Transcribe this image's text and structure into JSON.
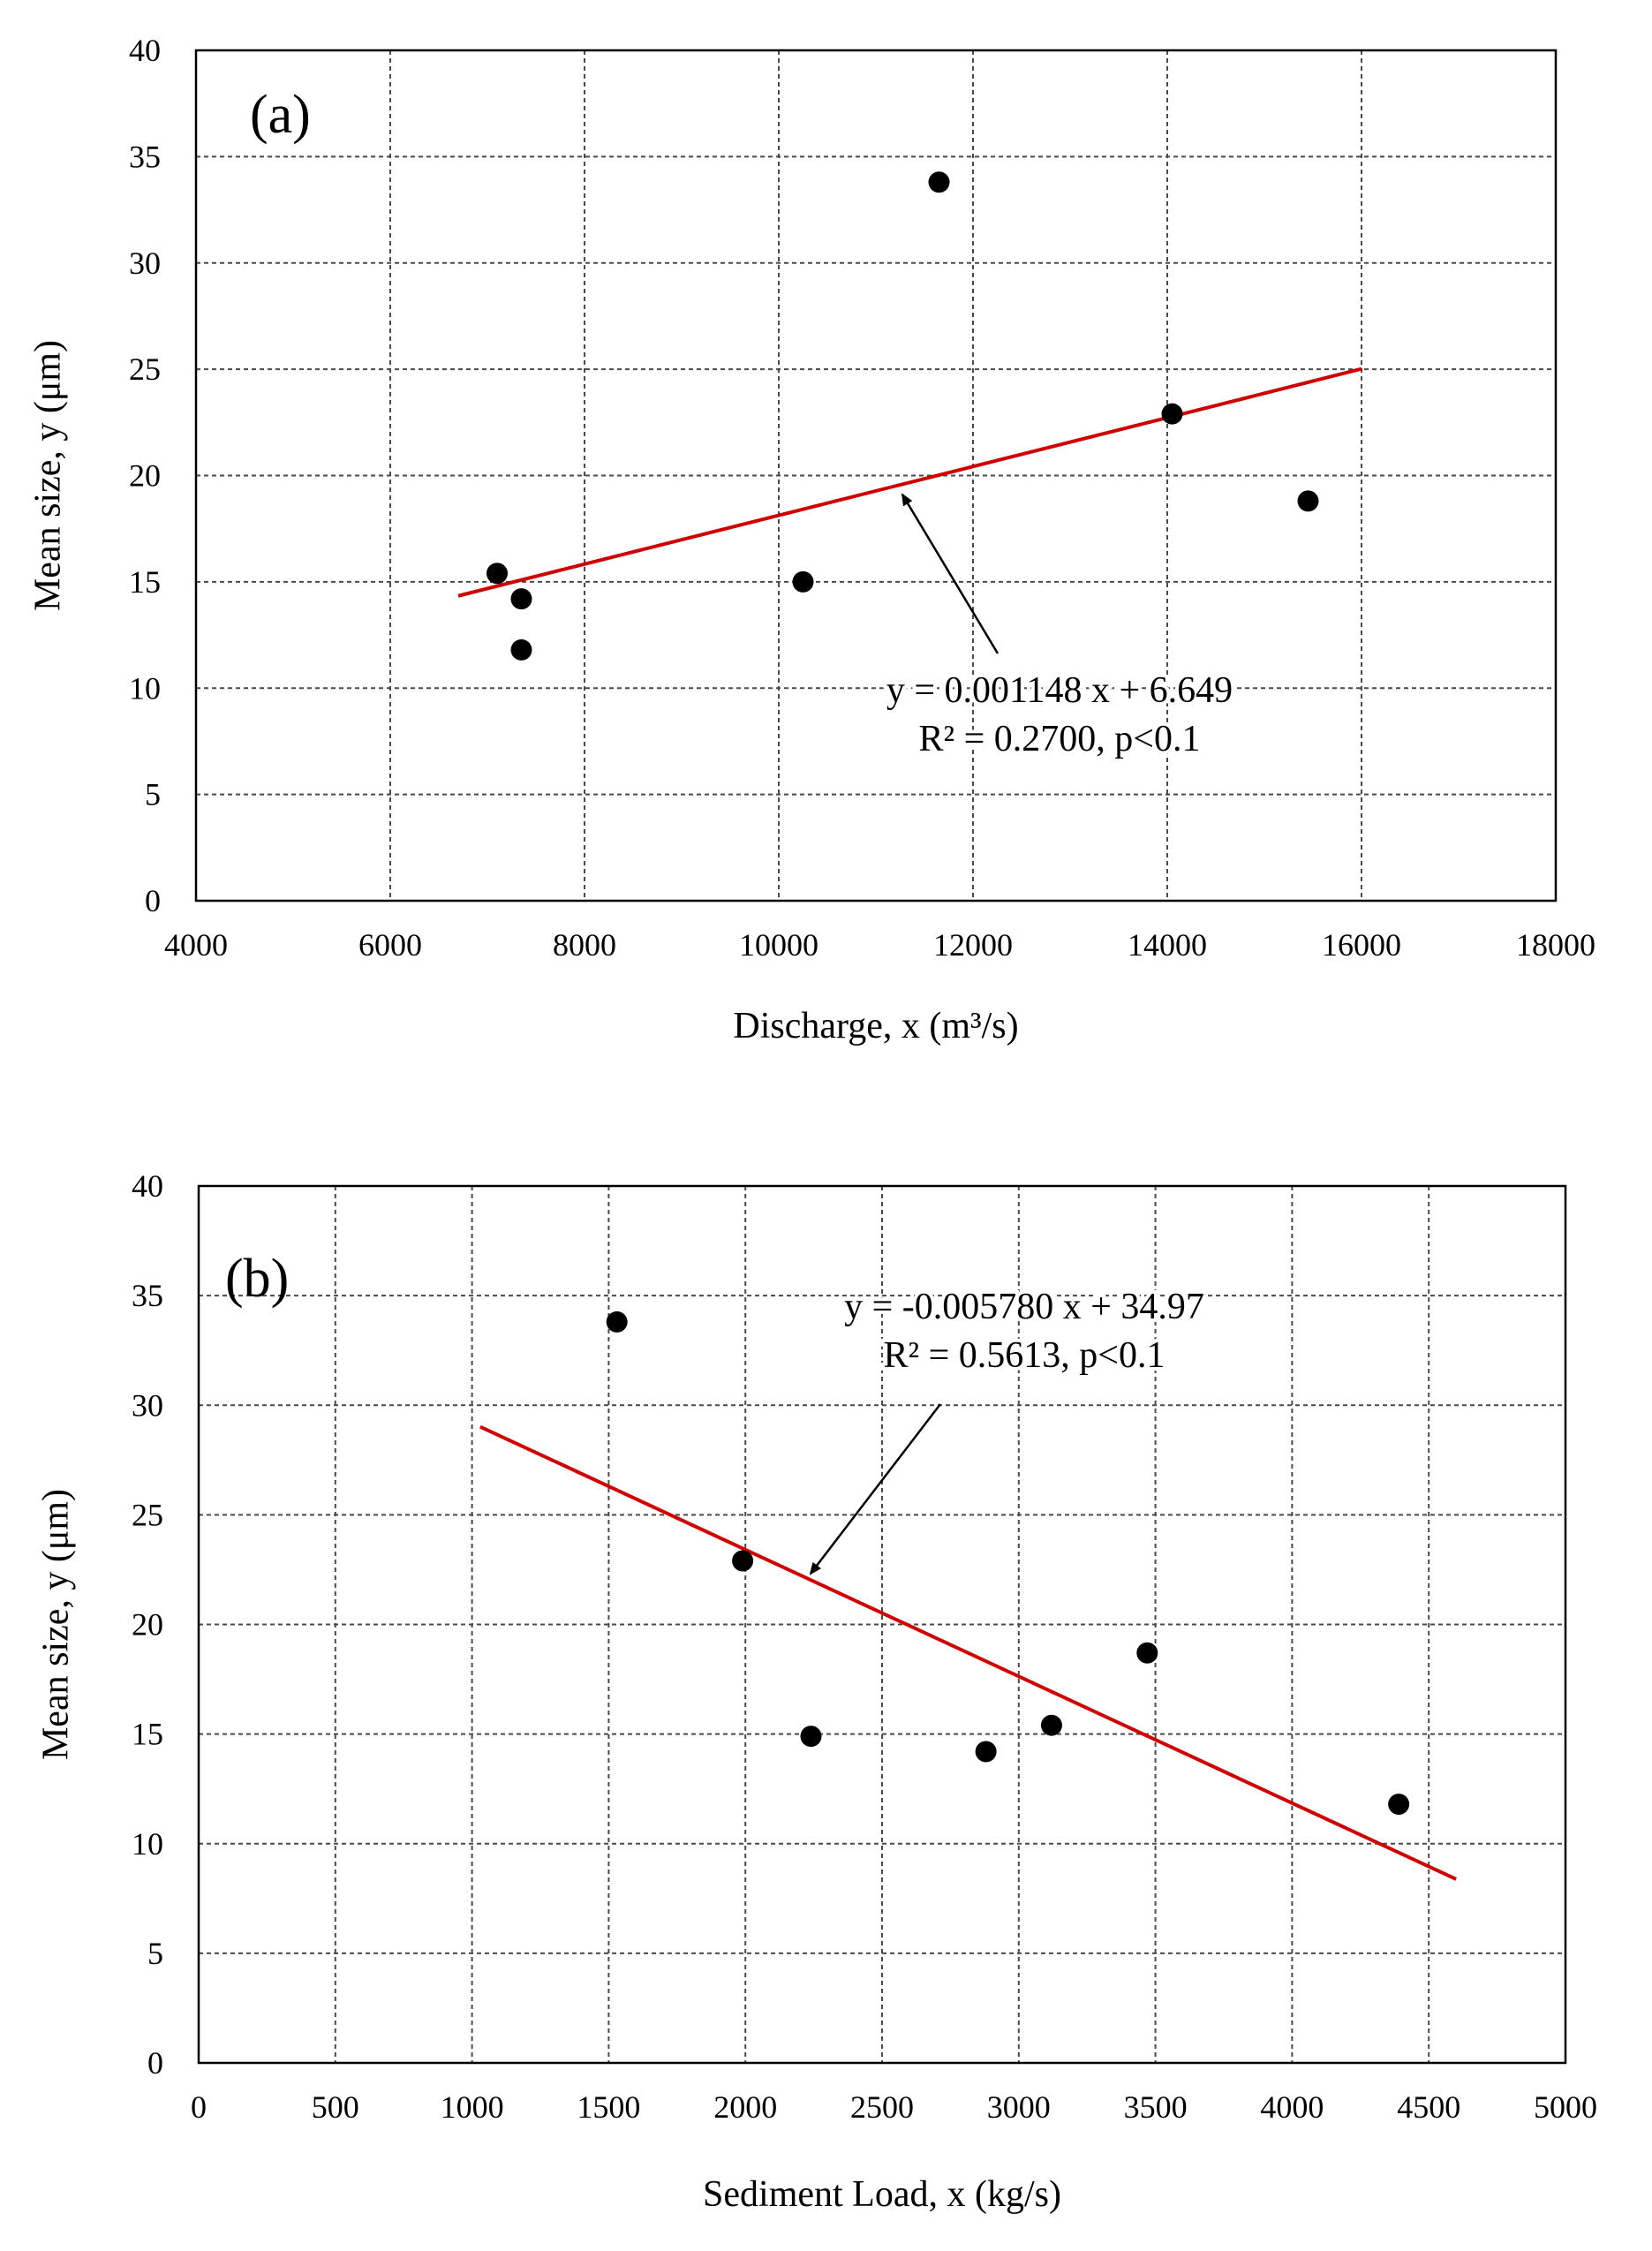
{
  "chart_data": [
    {
      "type": "scatter",
      "panel_label": "(a)",
      "xlabel": "Discharge, x (m³/s)",
      "ylabel": "Mean size, y (μm)",
      "xlim": [
        4000,
        18000
      ],
      "ylim": [
        0,
        40
      ],
      "xticks": [
        4000,
        6000,
        8000,
        10000,
        12000,
        14000,
        16000,
        18000
      ],
      "yticks": [
        0,
        5,
        10,
        15,
        20,
        25,
        30,
        35,
        40
      ],
      "grid": true,
      "series": [
        {
          "name": "observations",
          "points": [
            {
              "x": 7100,
              "y": 15.4
            },
            {
              "x": 7350,
              "y": 14.2
            },
            {
              "x": 7350,
              "y": 11.8
            },
            {
              "x": 10250,
              "y": 15.0
            },
            {
              "x": 11650,
              "y": 33.8
            },
            {
              "x": 14050,
              "y": 22.9
            },
            {
              "x": 15450,
              "y": 18.8
            }
          ]
        }
      ],
      "fit": {
        "slope": 0.001148,
        "intercept": 6.649,
        "x_range": [
          6700,
          16000
        ],
        "equation": "y = 0.001148 x + 6.649",
        "stats": "R² = 0.2700, p<0.1",
        "color": "#cc0000"
      }
    },
    {
      "type": "scatter",
      "panel_label": "(b)",
      "xlabel": "Sediment Load, x (kg/s)",
      "ylabel": "Mean size, y (μm)",
      "xlim": [
        0,
        5000
      ],
      "ylim": [
        0,
        40
      ],
      "xticks": [
        0,
        500,
        1000,
        1500,
        2000,
        2500,
        3000,
        3500,
        4000,
        4500,
        5000
      ],
      "yticks": [
        0,
        5,
        10,
        15,
        20,
        25,
        30,
        35,
        40
      ],
      "grid": true,
      "series": [
        {
          "name": "observations",
          "points": [
            {
              "x": 1530,
              "y": 33.8
            },
            {
              "x": 1990,
              "y": 22.9
            },
            {
              "x": 2240,
              "y": 14.9
            },
            {
              "x": 2880,
              "y": 14.2
            },
            {
              "x": 3120,
              "y": 15.4
            },
            {
              "x": 3470,
              "y": 18.7
            },
            {
              "x": 4390,
              "y": 11.8
            }
          ]
        }
      ],
      "fit": {
        "slope": -0.00578,
        "intercept": 34.97,
        "x_range": [
          1030,
          4600
        ],
        "equation": "y = -0.005780 x + 34.97",
        "stats": "R² = 0.5613, p<0.1",
        "color": "#cc0000"
      }
    }
  ]
}
